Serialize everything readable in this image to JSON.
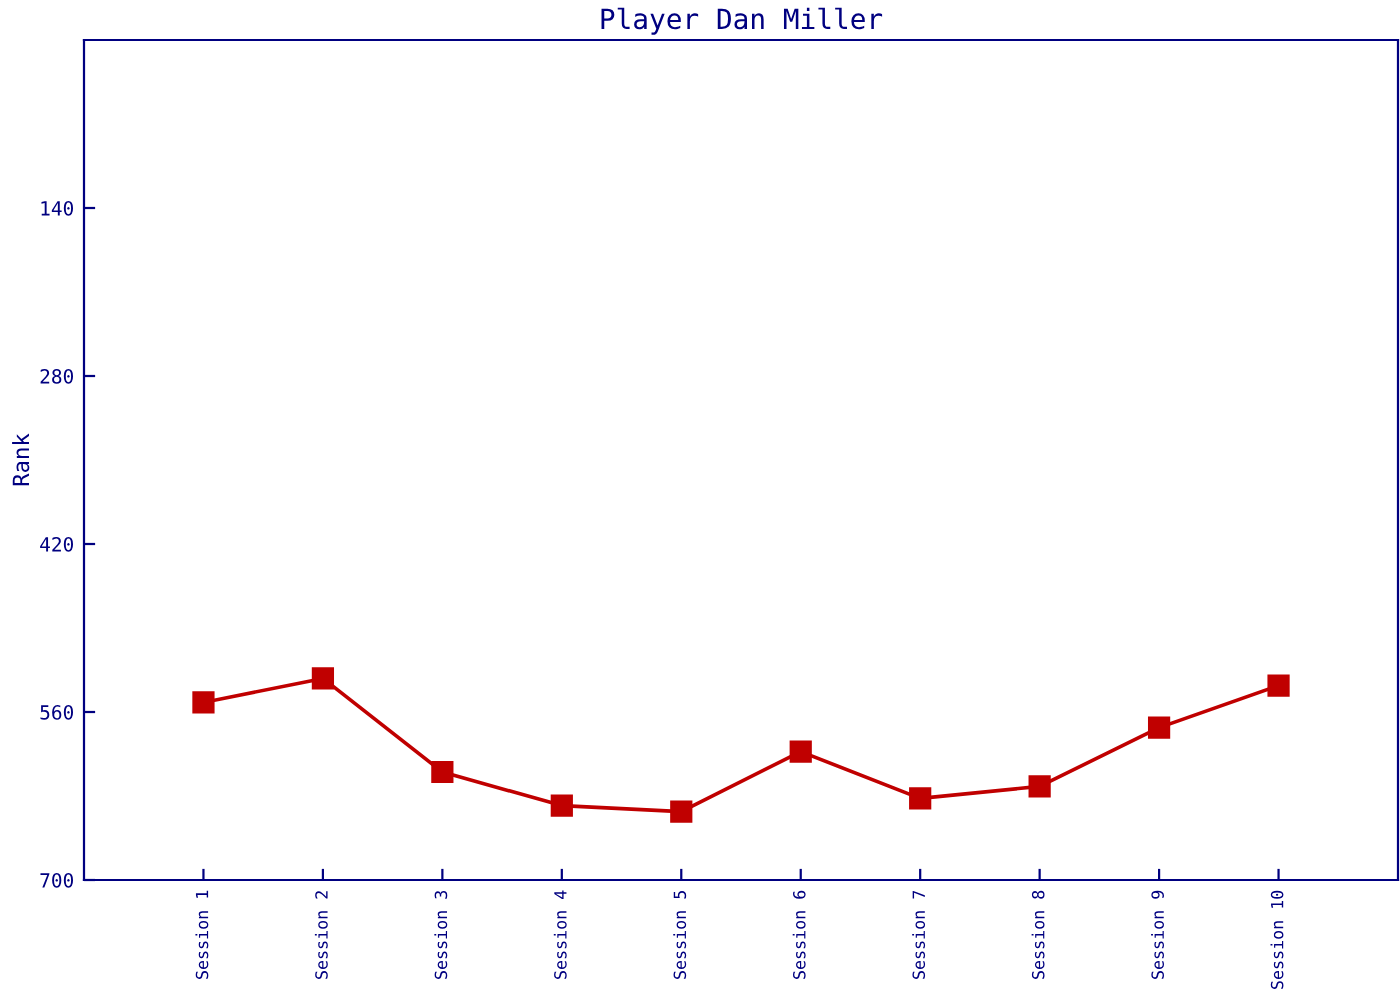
{
  "chart_data": {
    "type": "line",
    "title": "Player Dan Miller",
    "ylabel": "Rank",
    "categories": [
      "Session 1",
      "Session 2",
      "Session 3",
      "Session 4",
      "Session 5",
      "Session 6",
      "Session 7",
      "Session 8",
      "Session 9",
      "Session 10"
    ],
    "series": [
      {
        "color": "#c00000",
        "values": [
          552,
          532,
          610,
          638,
          643,
          593,
          632,
          622,
          573,
          538
        ]
      }
    ],
    "ylim": [
      700,
      0
    ],
    "yticks": [
      140,
      280,
      420,
      560,
      700
    ],
    "marker": "square",
    "line_style": "solid",
    "grid": false,
    "legend": false
  }
}
